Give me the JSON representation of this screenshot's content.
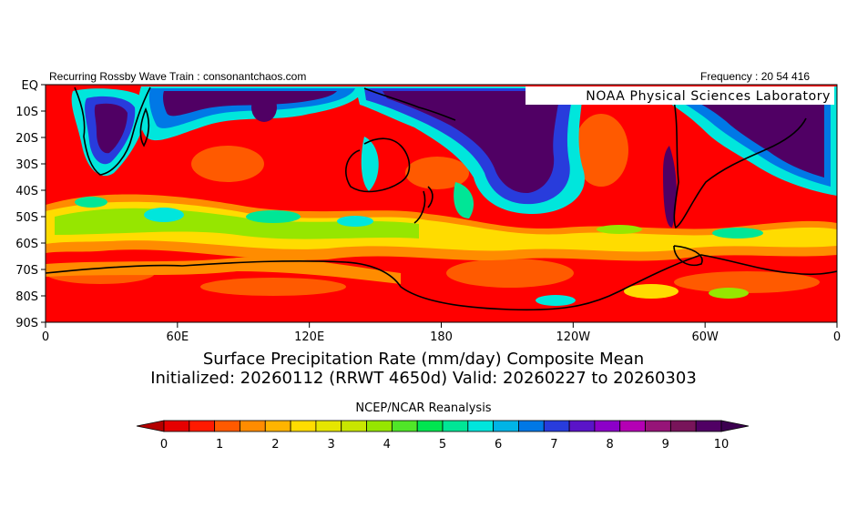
{
  "header": {
    "left": "Recurring Rossby Wave Train : consonantchaos.com",
    "right": "Frequency : 20 54 416"
  },
  "map": {
    "lab_label": "NOAA Physical Sciences Laboratory",
    "lat_labels": [
      "EQ",
      "10S",
      "20S",
      "30S",
      "40S",
      "50S",
      "60S",
      "70S",
      "80S",
      "90S"
    ],
    "lon_labels": [
      "0",
      "60E",
      "120E",
      "180",
      "120W",
      "60W",
      "0"
    ],
    "land_color": "#000000",
    "background_color": "#ff0000"
  },
  "titles": {
    "line1": "Surface Precipitation Rate (mm/day) Composite Mean",
    "line2": "Initialized: 20260112 (RRWT 4650d) Valid: 20260227 to 20260303",
    "source": "NCEP/NCAR Reanalysis"
  },
  "colorbar": {
    "labels": [
      "0",
      "1",
      "2",
      "3",
      "4",
      "5",
      "6",
      "7",
      "8",
      "9",
      "10"
    ],
    "colors": [
      "#e60000",
      "#ff1a00",
      "#ff5a00",
      "#ff8c00",
      "#ffb400",
      "#ffdc00",
      "#e6e600",
      "#c8e600",
      "#96e600",
      "#50e628",
      "#00e650",
      "#00e696",
      "#00e6dc",
      "#00b4e6",
      "#0078e6",
      "#283cdc",
      "#5a14c8",
      "#8c00c8",
      "#b400b4",
      "#961478",
      "#78145a",
      "#500064"
    ],
    "low_extend": "#b40000",
    "high_extend": "#3c0050"
  }
}
